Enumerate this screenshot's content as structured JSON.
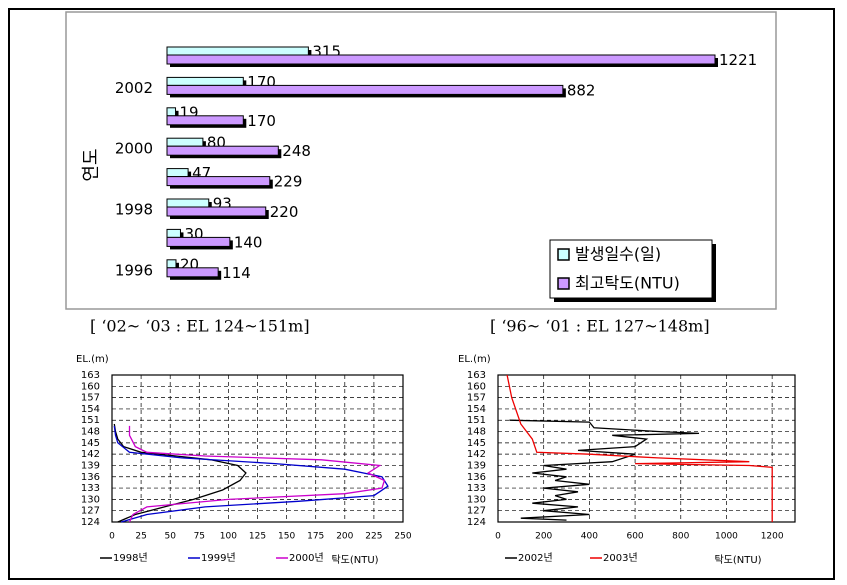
{
  "chart_data": [
    {
      "type": "hbar",
      "ylabel": "연도",
      "categories": [
        null,
        "2002",
        null,
        "2000",
        null,
        "1998",
        null,
        "1996"
      ],
      "series": [
        {
          "name": "발생일수(일)",
          "color": "#ccffff",
          "values": [
            315,
            170,
            19,
            80,
            47,
            93,
            30,
            20
          ]
        },
        {
          "name": "최고탁도(NTU)",
          "color": "#cc99ff",
          "values": [
            1221,
            882,
            170,
            248,
            229,
            220,
            140,
            114
          ]
        }
      ],
      "legend": "bottom-right"
    },
    {
      "type": "profile",
      "title": "[ ‘02~ ‘03 : EL 124~151m]",
      "ylabel": "EL.(m)",
      "xlabel": "탁도(NTU)",
      "xlim": [
        0,
        250
      ],
      "xticks": [
        0,
        25,
        50,
        75,
        100,
        125,
        150,
        175,
        200,
        225,
        250
      ],
      "ylim": [
        124,
        163
      ],
      "yticks": [
        124,
        127,
        130,
        133,
        136,
        139,
        142,
        145,
        148,
        151,
        154,
        157,
        160,
        163
      ],
      "grid": true,
      "legend": "bottom",
      "series": [
        {
          "name": "1998년",
          "color": "#000000",
          "x": [
            5,
            20,
            45,
            70,
            95,
            110,
            115,
            108,
            85,
            55,
            25,
            10,
            5,
            3,
            2
          ],
          "values": [
            124,
            126,
            128,
            130,
            132.5,
            135,
            137,
            139,
            140.5,
            141.5,
            142.5,
            144,
            146,
            148,
            150
          ]
        },
        {
          "name": "1999년",
          "color": "#0000cc",
          "x": [
            8,
            30,
            80,
            160,
            225,
            237,
            232,
            200,
            140,
            60,
            15,
            5,
            3,
            2
          ],
          "values": [
            124,
            126,
            128,
            129.5,
            131,
            133.5,
            136,
            138,
            139.5,
            141,
            142.5,
            145,
            147,
            149.5
          ]
        },
        {
          "name": "2000년",
          "color": "#cc00cc",
          "x": [
            15,
            18,
            30,
            100,
            200,
            232,
            234,
            220,
            230,
            180,
            80,
            30,
            20,
            15,
            15
          ],
          "values": [
            124,
            126,
            128,
            130,
            131.5,
            133,
            135,
            137,
            139,
            140.5,
            141.5,
            142.5,
            144,
            147,
            149.5
          ]
        }
      ]
    },
    {
      "type": "profile",
      "title": "[ ‘96~ ‘01 : EL 127~148m]",
      "ylabel": "EL.(m)",
      "xlabel": "탁도(NTU)",
      "xlim": [
        0,
        1300
      ],
      "xticks": [
        0,
        200,
        400,
        600,
        800,
        1000,
        1200
      ],
      "ylim": [
        124,
        163
      ],
      "yticks": [
        124,
        127,
        130,
        133,
        136,
        139,
        142,
        145,
        148,
        151,
        154,
        157,
        160,
        163
      ],
      "grid": true,
      "legend": "bottom",
      "series": [
        {
          "name": "2002년",
          "color": "#000000",
          "x": [
            50,
            400,
            420,
            700,
            880,
            500,
            650,
            600,
            350,
            600,
            500,
            200,
            300,
            150,
            300,
            250,
            400,
            200,
            350,
            250,
            300,
            150,
            350,
            200,
            400,
            100,
            300
          ],
          "values": [
            151,
            150.5,
            149,
            148,
            147.5,
            147,
            146,
            144,
            143,
            142,
            140,
            139,
            138,
            137,
            136,
            135,
            134,
            133,
            132,
            131,
            130,
            129,
            128,
            127,
            126,
            125,
            124.5
          ]
        },
        {
          "name": "2003년",
          "color": "#ee0000",
          "x": [
            40,
            60,
            100,
            150,
            170,
            400,
            700,
            1100,
            600,
            1100,
            1200,
            1200
          ],
          "values": [
            163,
            157,
            150,
            146,
            142.5,
            142,
            141,
            140,
            139.5,
            139,
            138.5,
            124
          ]
        }
      ]
    }
  ]
}
